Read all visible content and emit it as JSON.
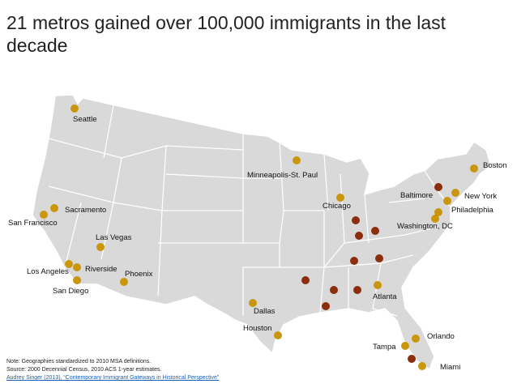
{
  "title": "21 metros gained over 100,000 immigrants in the last decade",
  "cities": [
    "Seattle",
    "Minneapolis-St. Paul",
    "Chicago",
    "Boston",
    "New York",
    "Baltimore",
    "Philadelphia",
    "Washington, DC",
    "Sacramento",
    "San Francisco",
    "Las Vegas",
    "Los Angeles",
    "Riverside",
    "San Diego",
    "Phoenix",
    "Dallas",
    "Houston",
    "Atlanta",
    "Orlando",
    "Tampa",
    "Miami"
  ],
  "notes": [
    "Note: Geographies standardized to 2010 MSA definitions.",
    "Source: 2000 Decennial Census, 2010 ACS 1-year estimates.",
    "Audrey Singer (2013), “Contemporary Immigrant Gateways in Historical Perspective”"
  ]
}
